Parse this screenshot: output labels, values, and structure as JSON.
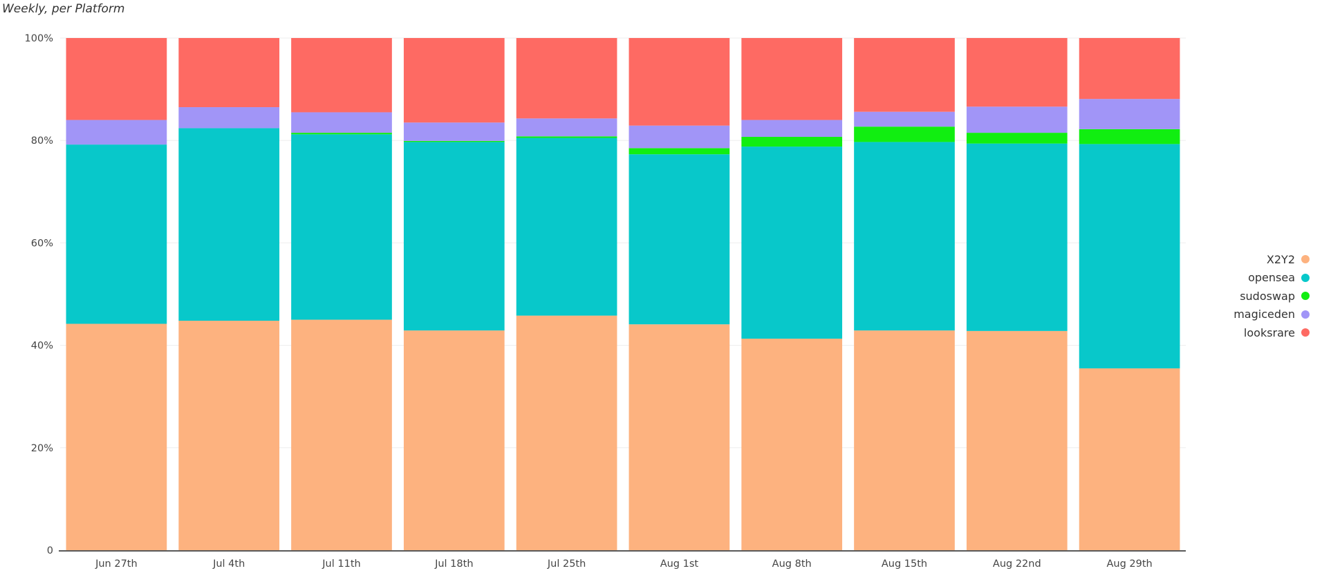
{
  "chart_data": {
    "type": "bar",
    "stacked": true,
    "normalized": true,
    "subtitle": "Weekly, per Platform",
    "title": "",
    "xlabel": "",
    "ylabel": "",
    "ylim": [
      0,
      100
    ],
    "y_ticks": [
      "0",
      "20%",
      "40%",
      "60%",
      "80%",
      "100%"
    ],
    "grid": true,
    "legend_position": "right",
    "categories": [
      "Jun 27th",
      "Jul 4th",
      "Jul 11th",
      "Jul 18th",
      "Jul 25th",
      "Aug 1st",
      "Aug 8th",
      "Aug 15th",
      "Aug 22nd",
      "Aug 29th"
    ],
    "series": [
      {
        "name": "X2Y2",
        "color": "#fdb27f",
        "values": [
          44.2,
          44.8,
          45.0,
          42.9,
          45.8,
          44.1,
          41.3,
          42.9,
          42.8,
          35.5
        ]
      },
      {
        "name": "opensea",
        "color": "#08c8ca",
        "values": [
          35.0,
          37.6,
          36.2,
          36.8,
          34.7,
          33.2,
          37.5,
          36.8,
          36.6,
          43.8
        ]
      },
      {
        "name": "sudoswap",
        "color": "#11ee11",
        "values": [
          0.0,
          0.0,
          0.3,
          0.2,
          0.3,
          1.2,
          1.9,
          3.0,
          2.1,
          2.9
        ]
      },
      {
        "name": "magiceden",
        "color": "#a195f7",
        "values": [
          4.8,
          4.1,
          4.0,
          3.6,
          3.5,
          4.4,
          3.3,
          2.9,
          5.1,
          5.9
        ]
      },
      {
        "name": "looksrare",
        "color": "#fe6a63",
        "values": [
          16.0,
          13.5,
          14.5,
          16.5,
          15.7,
          17.1,
          16.0,
          14.4,
          13.4,
          11.9
        ]
      }
    ]
  }
}
